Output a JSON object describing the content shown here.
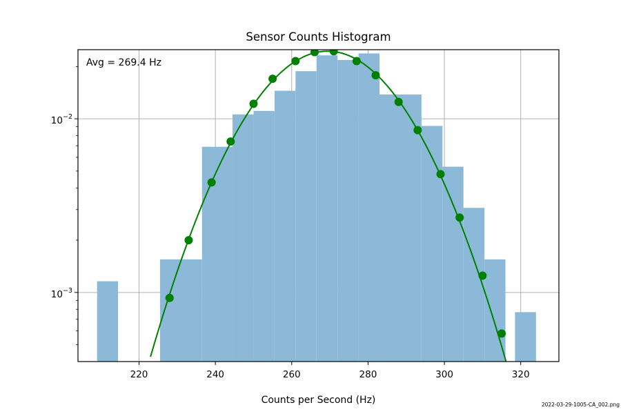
{
  "chart_data": {
    "type": "bar",
    "title": "Sensor Counts Histogram",
    "xlabel": "Counts per Second (Hz)",
    "ylabel": "",
    "xlim": [
      204,
      330
    ],
    "ylim": [
      0.0004,
      0.025
    ],
    "yscale": "log",
    "grid": true,
    "xticks": [
      220,
      240,
      260,
      280,
      300,
      320
    ],
    "xtick_labels": [
      "220",
      "240",
      "260",
      "280",
      "300",
      "320"
    ],
    "yticks": [
      0.001,
      0.01
    ],
    "ytick_labels": [
      {
        "base": "10",
        "exp": "−3"
      },
      {
        "base": "10",
        "exp": "−2"
      }
    ],
    "annotation": "Avg = 269.4 Hz",
    "footer": "2022-03-29-1005-CA_002.png",
    "histogram": {
      "color": "#8db9d9",
      "bins": [
        {
          "x0": 209.0,
          "x1": 214.5,
          "value": 0.00116
        },
        {
          "x0": 225.5,
          "x1": 236.5,
          "value": 0.00155
        },
        {
          "x0": 236.5,
          "x1": 244.5,
          "value": 0.0069
        },
        {
          "x0": 244.5,
          "x1": 250.0,
          "value": 0.0106
        },
        {
          "x0": 250.0,
          "x1": 255.5,
          "value": 0.0111
        },
        {
          "x0": 255.5,
          "x1": 261.0,
          "value": 0.0145
        },
        {
          "x0": 261.0,
          "x1": 266.5,
          "value": 0.0188
        },
        {
          "x0": 266.5,
          "x1": 272.0,
          "value": 0.0232
        },
        {
          "x0": 272.0,
          "x1": 277.5,
          "value": 0.0218
        },
        {
          "x0": 277.5,
          "x1": 283.0,
          "value": 0.0238
        },
        {
          "x0": 283.0,
          "x1": 294.0,
          "value": 0.0138
        },
        {
          "x0": 294.0,
          "x1": 299.5,
          "value": 0.0091
        },
        {
          "x0": 299.5,
          "x1": 305.0,
          "value": 0.0053
        },
        {
          "x0": 305.0,
          "x1": 310.5,
          "value": 0.00307
        },
        {
          "x0": 310.5,
          "x1": 316.0,
          "value": 0.00155
        },
        {
          "x0": 318.5,
          "x1": 324.0,
          "value": 0.00077
        }
      ]
    },
    "fit": {
      "color": "#008000",
      "curve": {
        "mean": 269.4,
        "sigma": 16.3,
        "peak": 0.0245,
        "x_start": 223,
        "x_end": 317.5
      },
      "points": [
        {
          "x": 228.0,
          "y": 0.00093
        },
        {
          "x": 233.0,
          "y": 0.002
        },
        {
          "x": 239.0,
          "y": 0.0043
        },
        {
          "x": 244.0,
          "y": 0.0074
        },
        {
          "x": 250.0,
          "y": 0.0122
        },
        {
          "x": 255.0,
          "y": 0.017
        },
        {
          "x": 261.0,
          "y": 0.0215
        },
        {
          "x": 266.0,
          "y": 0.0242
        },
        {
          "x": 271.0,
          "y": 0.0245
        },
        {
          "x": 277.0,
          "y": 0.0215
        },
        {
          "x": 282.0,
          "y": 0.0178
        },
        {
          "x": 288.0,
          "y": 0.0125
        },
        {
          "x": 293.0,
          "y": 0.0086
        },
        {
          "x": 299.0,
          "y": 0.0048
        },
        {
          "x": 304.0,
          "y": 0.0027
        },
        {
          "x": 310.0,
          "y": 0.00125
        },
        {
          "x": 315.0,
          "y": 0.00058
        }
      ]
    }
  }
}
